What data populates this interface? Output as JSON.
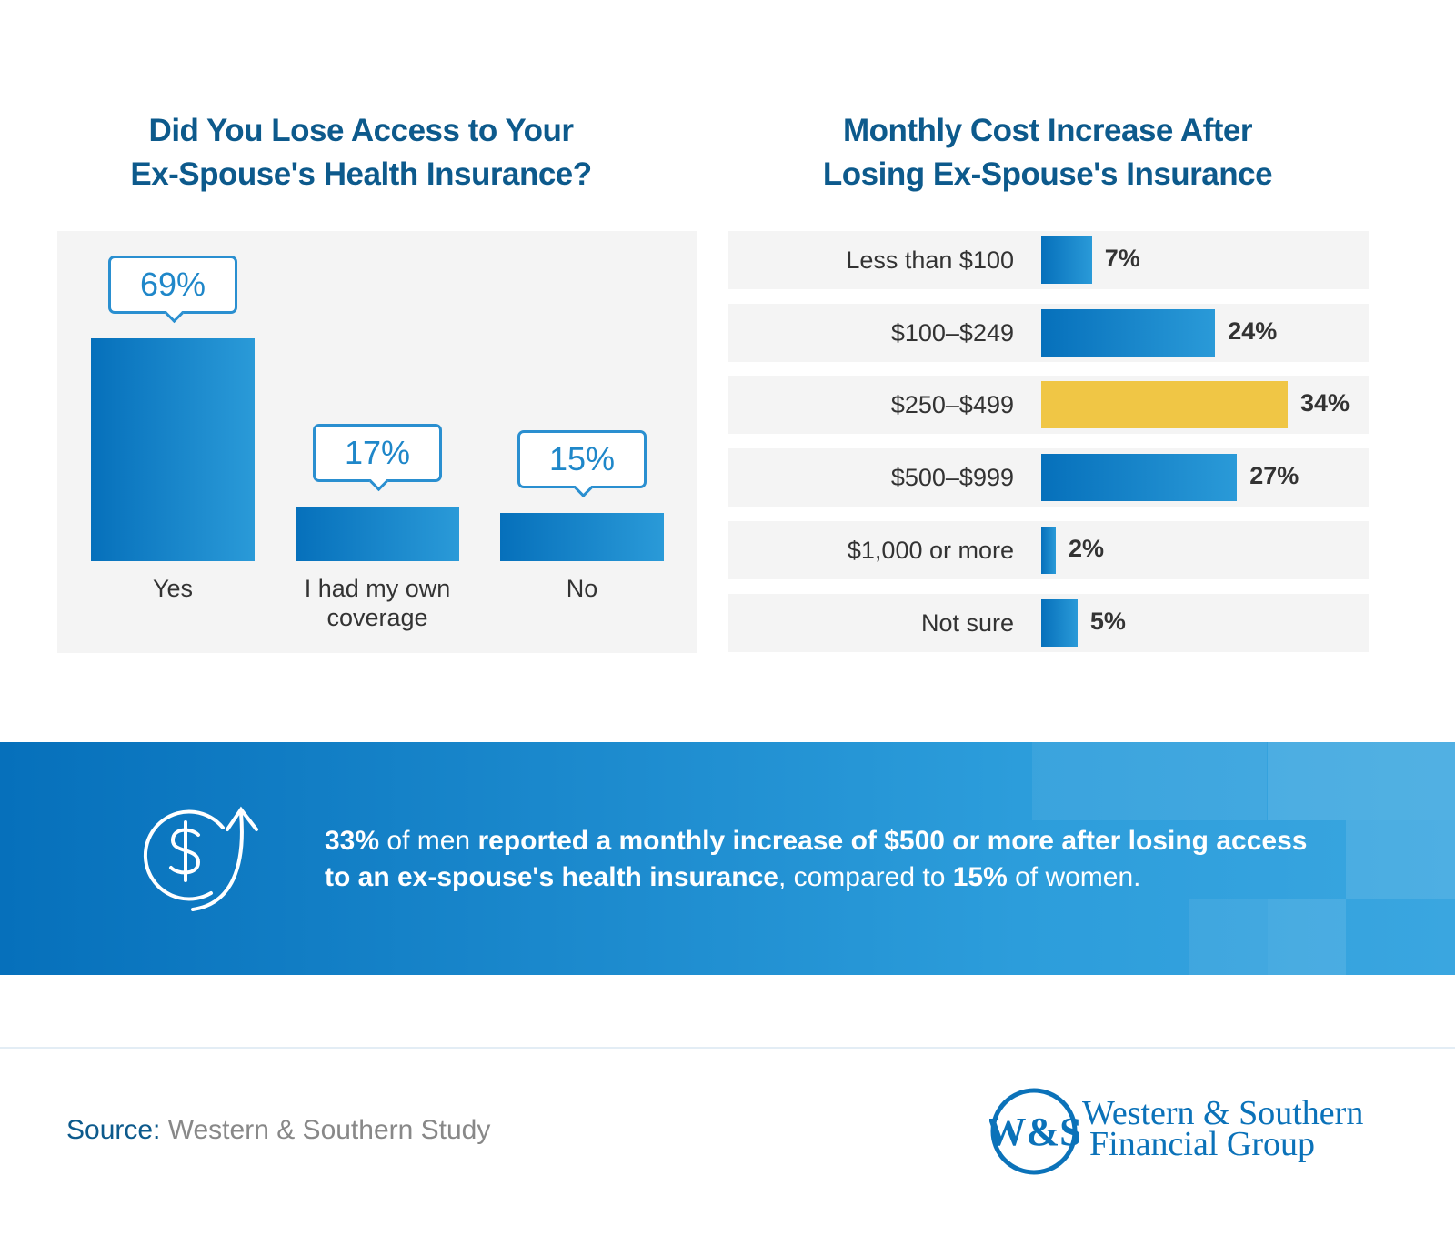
{
  "chart_data": [
    {
      "type": "bar",
      "title": "Did You Lose Access to Your Ex-Spouse's Health Insurance?",
      "categories": [
        "Yes",
        "I had my own coverage",
        "No"
      ],
      "values": [
        69,
        17,
        15
      ],
      "data_labels": [
        "69%",
        "17%",
        "15%"
      ],
      "bar_color": "#0670bb"
    },
    {
      "type": "bar",
      "orientation": "horizontal",
      "title": "Monthly Cost Increase After Losing Ex-Spouse's Insurance",
      "categories": [
        "Less than $100",
        "$100–$249",
        "$250–$499",
        "$500–$999",
        "$1,000 or more",
        "Not sure"
      ],
      "values": [
        7,
        24,
        34,
        27,
        2,
        5
      ],
      "data_labels": [
        "7%",
        "24%",
        "34%",
        "27%",
        "2%",
        "5%"
      ],
      "bar_color": "#0670bb",
      "highlight_color": "#f0c645",
      "highlight_index": 2
    }
  ],
  "titles": {
    "left_line1": "Did You Lose Access to Your",
    "left_line2": "Ex-Spouse's Health Insurance?",
    "right_line1": "Monthly Cost Increase After",
    "right_line2": "Losing Ex-Spouse's Insurance"
  },
  "banner": {
    "icon": "dollar-up-arrow-icon",
    "parts": [
      {
        "t": "33%",
        "b": true
      },
      {
        "t": " of men ",
        "b": false
      },
      {
        "t": "reported a monthly increase of $500 or more after losing access to an ex-spouse's health insurance",
        "b": true
      },
      {
        "t": ", compared to ",
        "b": false
      },
      {
        "t": "15%",
        "b": true
      },
      {
        "t": " of women.",
        "b": false
      }
    ]
  },
  "source": {
    "label": "Source:",
    "text": " Western & Southern Study"
  },
  "logo": {
    "mark": "W&S",
    "line1": "Western & Southern",
    "line2": "Financial Group",
    "color": "#0b72b9"
  }
}
